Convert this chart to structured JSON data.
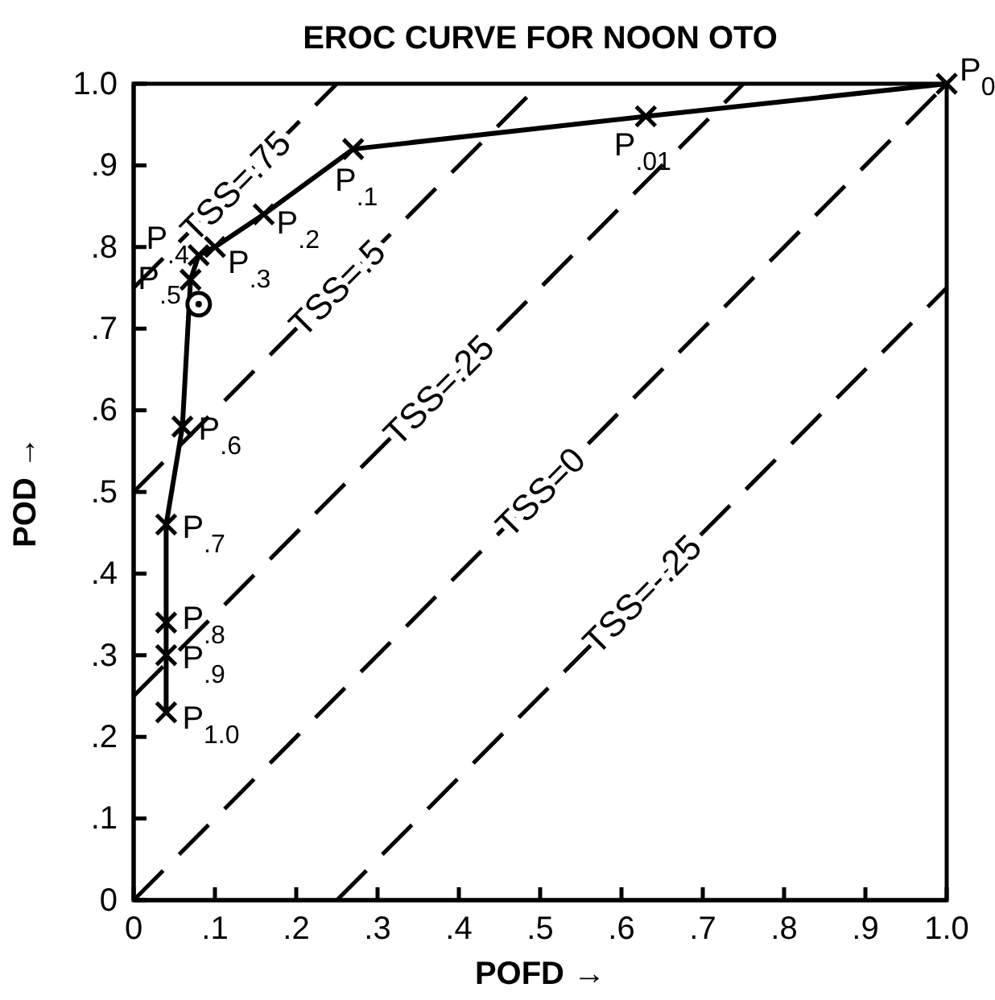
{
  "chart_data": {
    "type": "line",
    "title": "EROC CURVE FOR NOON OTO",
    "xlabel": "POFD →",
    "ylabel": "POD →",
    "xlim": [
      0,
      1
    ],
    "ylim": [
      0,
      1
    ],
    "xticks": [
      0,
      {
        "value": 0.1,
        "label": ".1"
      },
      {
        "value": 0.2,
        "label": ".2"
      },
      {
        "value": 0.3,
        "label": ".3"
      },
      {
        "value": 0.4,
        "label": ".4"
      },
      {
        "value": 0.5,
        "label": ".5"
      },
      {
        "value": 0.6,
        "label": ".6"
      },
      {
        "value": 0.7,
        "label": ".7"
      },
      {
        "value": 0.8,
        "label": ".8"
      },
      {
        "value": 0.9,
        "label": ".9"
      },
      {
        "value": 1,
        "label": "1.0"
      }
    ],
    "yticks": [
      0,
      {
        "value": 0.1,
        "label": ".1"
      },
      {
        "value": 0.2,
        "label": ".2"
      },
      {
        "value": 0.3,
        "label": ".3"
      },
      {
        "value": 0.4,
        "label": ".4"
      },
      {
        "value": 0.5,
        "label": ".5"
      },
      {
        "value": 0.6,
        "label": ".6"
      },
      {
        "value": 0.7,
        "label": ".7"
      },
      {
        "value": 0.8,
        "label": ".8"
      },
      {
        "value": 0.9,
        "label": ".9"
      },
      {
        "value": 1,
        "label": "1.0"
      }
    ],
    "grid": false,
    "series": [
      {
        "color": "#000000",
        "marker": "cross",
        "line_style": "solid",
        "x": [
          1,
          0.63,
          0.27,
          0.16,
          0.1,
          0.08,
          0.07,
          0.06,
          0.04,
          0.04,
          0.04,
          0.04
        ],
        "values": [
          1,
          0.96,
          0.92,
          0.84,
          0.8,
          0.79,
          0.76,
          0.58,
          0.46,
          0.34,
          0.3,
          0.23
        ]
      },
      {
        "type": "scatter",
        "color": "#000000",
        "marker": "circle",
        "x": [
          0.08
        ],
        "values": [
          0.73
        ]
      },
      {
        "name": "TSS=.75",
        "color": "#000000",
        "marker": "none",
        "line_style": "dashed",
        "x": [
          0,
          0.25
        ],
        "values": [
          0.75,
          1
        ]
      },
      {
        "name": "TSS=.5",
        "color": "#000000",
        "marker": "none",
        "line_style": "dashed",
        "x": [
          0,
          0.5
        ],
        "values": [
          0.5,
          1
        ]
      },
      {
        "name": "TSS=.25",
        "color": "#000000",
        "marker": "none",
        "line_style": "dashed",
        "x": [
          0,
          0.75
        ],
        "values": [
          0.25,
          1
        ]
      },
      {
        "name": "TSS=0",
        "color": "#000000",
        "marker": "none",
        "line_style": "dashed",
        "x": [
          0,
          1
        ],
        "values": [
          0,
          1
        ]
      },
      {
        "name": "TSS=-.25",
        "color": "#000000",
        "marker": "none",
        "line_style": "dashed",
        "x": [
          0.25,
          1
        ],
        "values": [
          0,
          0.75
        ]
      }
    ],
    "annotations": [
      {
        "text": "P$_{0}$",
        "x": 1,
        "y": 1
      },
      {
        "text": "P$_{.01}$",
        "x": 0.63,
        "y": 0.96
      },
      {
        "text": "P$_{.1}$",
        "x": 0.27,
        "y": 0.92
      },
      {
        "text": "P$_{.2}$",
        "x": 0.16,
        "y": 0.84
      },
      {
        "text": "P$_{.3}$",
        "x": 0.1,
        "y": 0.8
      },
      {
        "text": "P$_{.4}$",
        "x": 0.08,
        "y": 0.79
      },
      {
        "text": "P$_{.5}$",
        "x": 0.07,
        "y": 0.76
      },
      {
        "text": "P$_{.6}$",
        "x": 0.06,
        "y": 0.58
      },
      {
        "text": "P$_{.7}$",
        "x": 0.04,
        "y": 0.46
      },
      {
        "text": "P$_{.8}$",
        "x": 0.04,
        "y": 0.34
      },
      {
        "text": "P$_{.9}$",
        "x": 0.04,
        "y": 0.3
      },
      {
        "text": "P$_{1.0}$",
        "x": 0.04,
        "y": 0.23
      }
    ]
  }
}
